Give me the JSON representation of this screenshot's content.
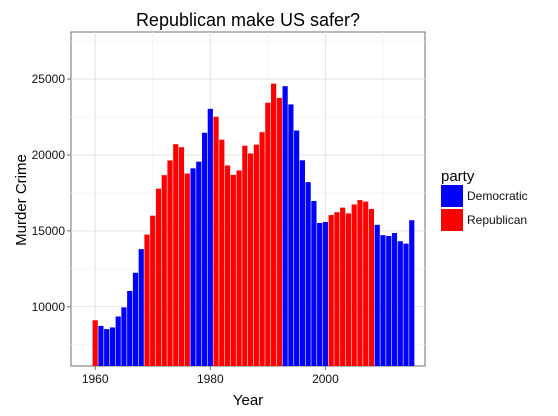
{
  "chart_data": {
    "type": "bar",
    "title": "Republican make US safer?",
    "xlabel": "Year",
    "ylabel": "Murder Crime",
    "xlim": [
      1955.8,
      2017.3
    ],
    "ylim": [
      6100,
      28100
    ],
    "xticks": [
      1960,
      1980,
      2000
    ],
    "yticks": [
      10000,
      15000,
      20000,
      25000
    ],
    "grid": true,
    "legend": {
      "title": "party",
      "position": "right",
      "entries": [
        {
          "name": "Democratic",
          "color": "#0000FF"
        },
        {
          "name": "Republican",
          "color": "#FF0000"
        }
      ]
    },
    "x": [
      1960,
      1961,
      1962,
      1963,
      1964,
      1965,
      1966,
      1967,
      1968,
      1969,
      1970,
      1971,
      1972,
      1973,
      1974,
      1975,
      1976,
      1977,
      1978,
      1979,
      1980,
      1981,
      1982,
      1983,
      1984,
      1985,
      1986,
      1987,
      1988,
      1989,
      1990,
      1991,
      1992,
      1993,
      1994,
      1995,
      1996,
      1997,
      1998,
      1999,
      2000,
      2001,
      2002,
      2003,
      2004,
      2005,
      2006,
      2007,
      2008,
      2009,
      2010,
      2011,
      2012,
      2013,
      2014,
      2015
    ],
    "values": [
      9110,
      8740,
      8530,
      8640,
      9360,
      9960,
      11040,
      12240,
      13800,
      14760,
      16000,
      17780,
      18670,
      19640,
      20710,
      20510,
      18780,
      19120,
      19560,
      21460,
      23040,
      22520,
      21010,
      19310,
      18690,
      18980,
      20610,
      20100,
      20680,
      21500,
      23440,
      24700,
      23760,
      24530,
      23330,
      21610,
      19650,
      18210,
      16970,
      15520,
      15590,
      16040,
      16230,
      16530,
      16150,
      16740,
      17030,
      16930,
      16440,
      15400,
      14720,
      14660,
      14860,
      14320,
      14160,
      15700
    ],
    "party": [
      "Republican",
      "Democratic",
      "Democratic",
      "Democratic",
      "Democratic",
      "Democratic",
      "Democratic",
      "Democratic",
      "Democratic",
      "Republican",
      "Republican",
      "Republican",
      "Republican",
      "Republican",
      "Republican",
      "Republican",
      "Republican",
      "Democratic",
      "Democratic",
      "Democratic",
      "Democratic",
      "Republican",
      "Republican",
      "Republican",
      "Republican",
      "Republican",
      "Republican",
      "Republican",
      "Republican",
      "Republican",
      "Republican",
      "Republican",
      "Republican",
      "Democratic",
      "Democratic",
      "Democratic",
      "Democratic",
      "Democratic",
      "Democratic",
      "Democratic",
      "Democratic",
      "Republican",
      "Republican",
      "Republican",
      "Republican",
      "Republican",
      "Republican",
      "Republican",
      "Republican",
      "Democratic",
      "Democratic",
      "Democratic",
      "Democratic",
      "Democratic",
      "Democratic",
      "Democratic"
    ]
  }
}
